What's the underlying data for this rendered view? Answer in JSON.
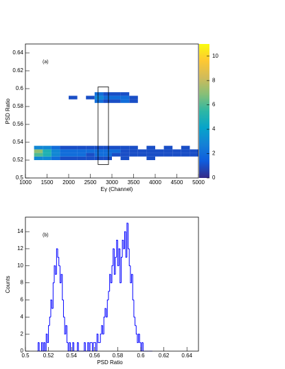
{
  "chart_data": [
    {
      "type": "heatmap",
      "annotation": "(a)",
      "x_label": "Eγ (Channel)",
      "y_label": "PSD Ratio",
      "xlim": [
        1000,
        5000
      ],
      "xticks": [
        1000,
        1500,
        2000,
        2500,
        3000,
        3500,
        4000,
        4500,
        5000
      ],
      "ylim": [
        0.5,
        0.65
      ],
      "yticks": [
        0.5,
        0.52,
        0.54,
        0.56,
        0.58,
        0.6,
        0.62,
        0.64
      ],
      "zlim": [
        0,
        11
      ],
      "zticks": [
        0,
        2,
        4,
        6,
        8,
        10
      ],
      "colorscale": [
        "#352a87",
        "#0f5cdd",
        "#1481d6",
        "#06a4ca",
        "#2eb7a4",
        "#87bf77",
        "#d1bb59",
        "#fec832",
        "#f9fb0e"
      ],
      "x": [
        1300,
        1500,
        1700,
        1900,
        2100,
        2300,
        2500,
        2700,
        2900,
        3100,
        3300,
        3500,
        3700,
        3900,
        4100,
        4300,
        4500,
        4700,
        4900
      ],
      "y": [
        0.522,
        0.526,
        0.53,
        0.534,
        0.586,
        0.59,
        0.594
      ],
      "z": [
        [
          3,
          3,
          2,
          1,
          1,
          1,
          1,
          1,
          1,
          0,
          1,
          0,
          0,
          1,
          0,
          0,
          0,
          0,
          0
        ],
        [
          6,
          5,
          3,
          2,
          2,
          2,
          1,
          2,
          2,
          1,
          1,
          1,
          1,
          1,
          1,
          1,
          1,
          1,
          1
        ],
        [
          7,
          5,
          3,
          2,
          2,
          2,
          2,
          2,
          2,
          2,
          1,
          1,
          1,
          1,
          1,
          1,
          1,
          1,
          1
        ],
        [
          3,
          3,
          2,
          1,
          1,
          1,
          1,
          1,
          1,
          1,
          1,
          1,
          0,
          1,
          0,
          1,
          0,
          1,
          0
        ],
        [
          0,
          0,
          0,
          0,
          0,
          0,
          0,
          2,
          1,
          1,
          2,
          1,
          0,
          0,
          0,
          0,
          0,
          0,
          0
        ],
        [
          0,
          0,
          0,
          0,
          1,
          0,
          1,
          3,
          2,
          2,
          2,
          1,
          0,
          0,
          0,
          0,
          0,
          0,
          0
        ],
        [
          0,
          0,
          0,
          0,
          0,
          0,
          0,
          2,
          1,
          1,
          1,
          0,
          0,
          0,
          0,
          0,
          0,
          0,
          0
        ]
      ],
      "region": {
        "x": [
          2680,
          2920
        ],
        "y": [
          0.515,
          0.602
        ]
      }
    },
    {
      "type": "histogram",
      "annotation": "(b)",
      "x_label": "PSD Ratio",
      "y_label": "Counts",
      "color": "#0000ff",
      "xlim": [
        0.5,
        0.65
      ],
      "xticks": [
        0.5,
        0.52,
        0.54,
        0.56,
        0.58,
        0.6,
        0.62,
        0.64
      ],
      "ylim": [
        0,
        15.7
      ],
      "yticks": [
        0,
        2,
        4,
        6,
        8,
        10,
        12,
        14
      ],
      "bins": [
        0.51,
        0.511,
        0.512,
        0.513,
        0.514,
        0.515,
        0.516,
        0.517,
        0.518,
        0.519,
        0.52,
        0.521,
        0.522,
        0.523,
        0.524,
        0.525,
        0.526,
        0.527,
        0.528,
        0.529,
        0.53,
        0.531,
        0.532,
        0.533,
        0.534,
        0.535,
        0.536,
        0.537,
        0.538,
        0.539,
        0.54,
        0.541,
        0.542,
        0.543,
        0.544,
        0.545,
        0.546,
        0.547,
        0.548,
        0.549,
        0.55,
        0.551,
        0.552,
        0.553,
        0.554,
        0.555,
        0.556,
        0.557,
        0.558,
        0.559,
        0.56,
        0.561,
        0.562,
        0.563,
        0.564,
        0.565,
        0.566,
        0.567,
        0.568,
        0.569,
        0.57,
        0.571,
        0.572,
        0.573,
        0.574,
        0.575,
        0.576,
        0.577,
        0.578,
        0.579,
        0.58,
        0.581,
        0.582,
        0.583,
        0.584,
        0.585,
        0.586,
        0.587,
        0.588,
        0.589,
        0.59,
        0.591,
        0.592,
        0.593,
        0.594,
        0.595,
        0.596,
        0.597,
        0.598,
        0.599,
        0.6,
        0.601,
        0.602,
        0.603,
        0.604,
        0.605,
        0.606,
        0.607,
        0.608,
        0.609,
        0.61
      ],
      "counts": [
        0,
        1,
        0,
        0,
        1,
        0,
        1,
        0,
        2,
        1,
        3,
        4,
        6,
        5,
        8,
        10,
        9,
        12,
        11,
        10,
        8,
        9,
        6,
        4,
        2,
        3,
        1,
        0,
        1,
        0,
        0,
        1,
        0,
        0,
        0,
        1,
        0,
        0,
        0,
        0,
        0,
        1,
        0,
        0,
        1,
        0,
        1,
        1,
        0,
        1,
        1,
        0,
        2,
        1,
        1,
        2,
        3,
        2,
        4,
        5,
        4,
        6,
        7,
        9,
        8,
        10,
        12,
        9,
        11,
        13,
        10,
        12,
        8,
        11,
        13,
        12,
        14,
        11,
        15,
        12,
        10,
        8,
        9,
        6,
        4,
        3,
        2,
        1,
        2,
        1,
        0,
        1,
        0,
        0,
        0,
        0,
        0,
        0,
        0,
        0
      ]
    }
  ]
}
